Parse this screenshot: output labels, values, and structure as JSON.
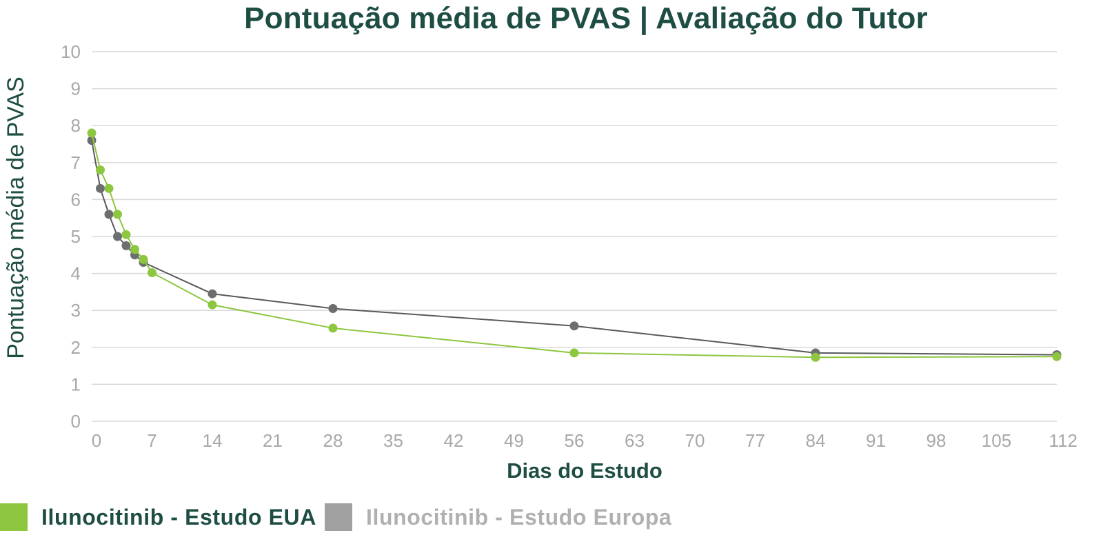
{
  "chart_data": {
    "type": "line",
    "title": "Pontuação média de PVAS | Avaliação do Tutor",
    "xlabel": "Dias do Estudo",
    "ylabel": "Pontuação média de PVAS",
    "xlim": [
      0,
      112
    ],
    "ylim": [
      0,
      10
    ],
    "x_ticks": [
      "0",
      "7",
      "14",
      "21",
      "28",
      "35",
      "42",
      "49",
      "56",
      "63",
      "70",
      "77",
      "84",
      "91",
      "98",
      "105",
      "112"
    ],
    "y_ticks": [
      "0",
      "1",
      "2",
      "3",
      "4",
      "5",
      "6",
      "7",
      "8",
      "9",
      "10"
    ],
    "grid": "horizontal",
    "legend_position": "bottom-left",
    "series": [
      {
        "name": "Ilunocitinib - Estudo EUA",
        "color": "#8dc63f",
        "label_color": "#1e4d44",
        "points": [
          {
            "x": 0,
            "y": 7.8
          },
          {
            "x": 1,
            "y": 6.8
          },
          {
            "x": 2,
            "y": 6.3
          },
          {
            "x": 3,
            "y": 5.6
          },
          {
            "x": 4,
            "y": 5.05
          },
          {
            "x": 5,
            "y": 4.65
          },
          {
            "x": 6,
            "y": 4.38
          },
          {
            "x": 7,
            "y": 4.02
          },
          {
            "x": 14,
            "y": 3.15
          },
          {
            "x": 28,
            "y": 2.52
          },
          {
            "x": 56,
            "y": 1.85
          },
          {
            "x": 84,
            "y": 1.73
          },
          {
            "x": 112,
            "y": 1.75
          }
        ]
      },
      {
        "name": "Ilunocitinib - Estudo Europa",
        "color": "#58595b",
        "marker_color": "#6d6e70",
        "swatch_color": "#a0a0a0",
        "label_color": "#b0b0b0",
        "points": [
          {
            "x": 0,
            "y": 7.6
          },
          {
            "x": 1,
            "y": 6.3
          },
          {
            "x": 2,
            "y": 5.6
          },
          {
            "x": 3,
            "y": 5.0
          },
          {
            "x": 4,
            "y": 4.75
          },
          {
            "x": 5,
            "y": 4.5
          },
          {
            "x": 6,
            "y": 4.3
          },
          {
            "x": 14,
            "y": 3.45
          },
          {
            "x": 28,
            "y": 3.05
          },
          {
            "x": 56,
            "y": 2.58
          },
          {
            "x": 84,
            "y": 1.85
          },
          {
            "x": 112,
            "y": 1.8
          }
        ]
      }
    ]
  }
}
